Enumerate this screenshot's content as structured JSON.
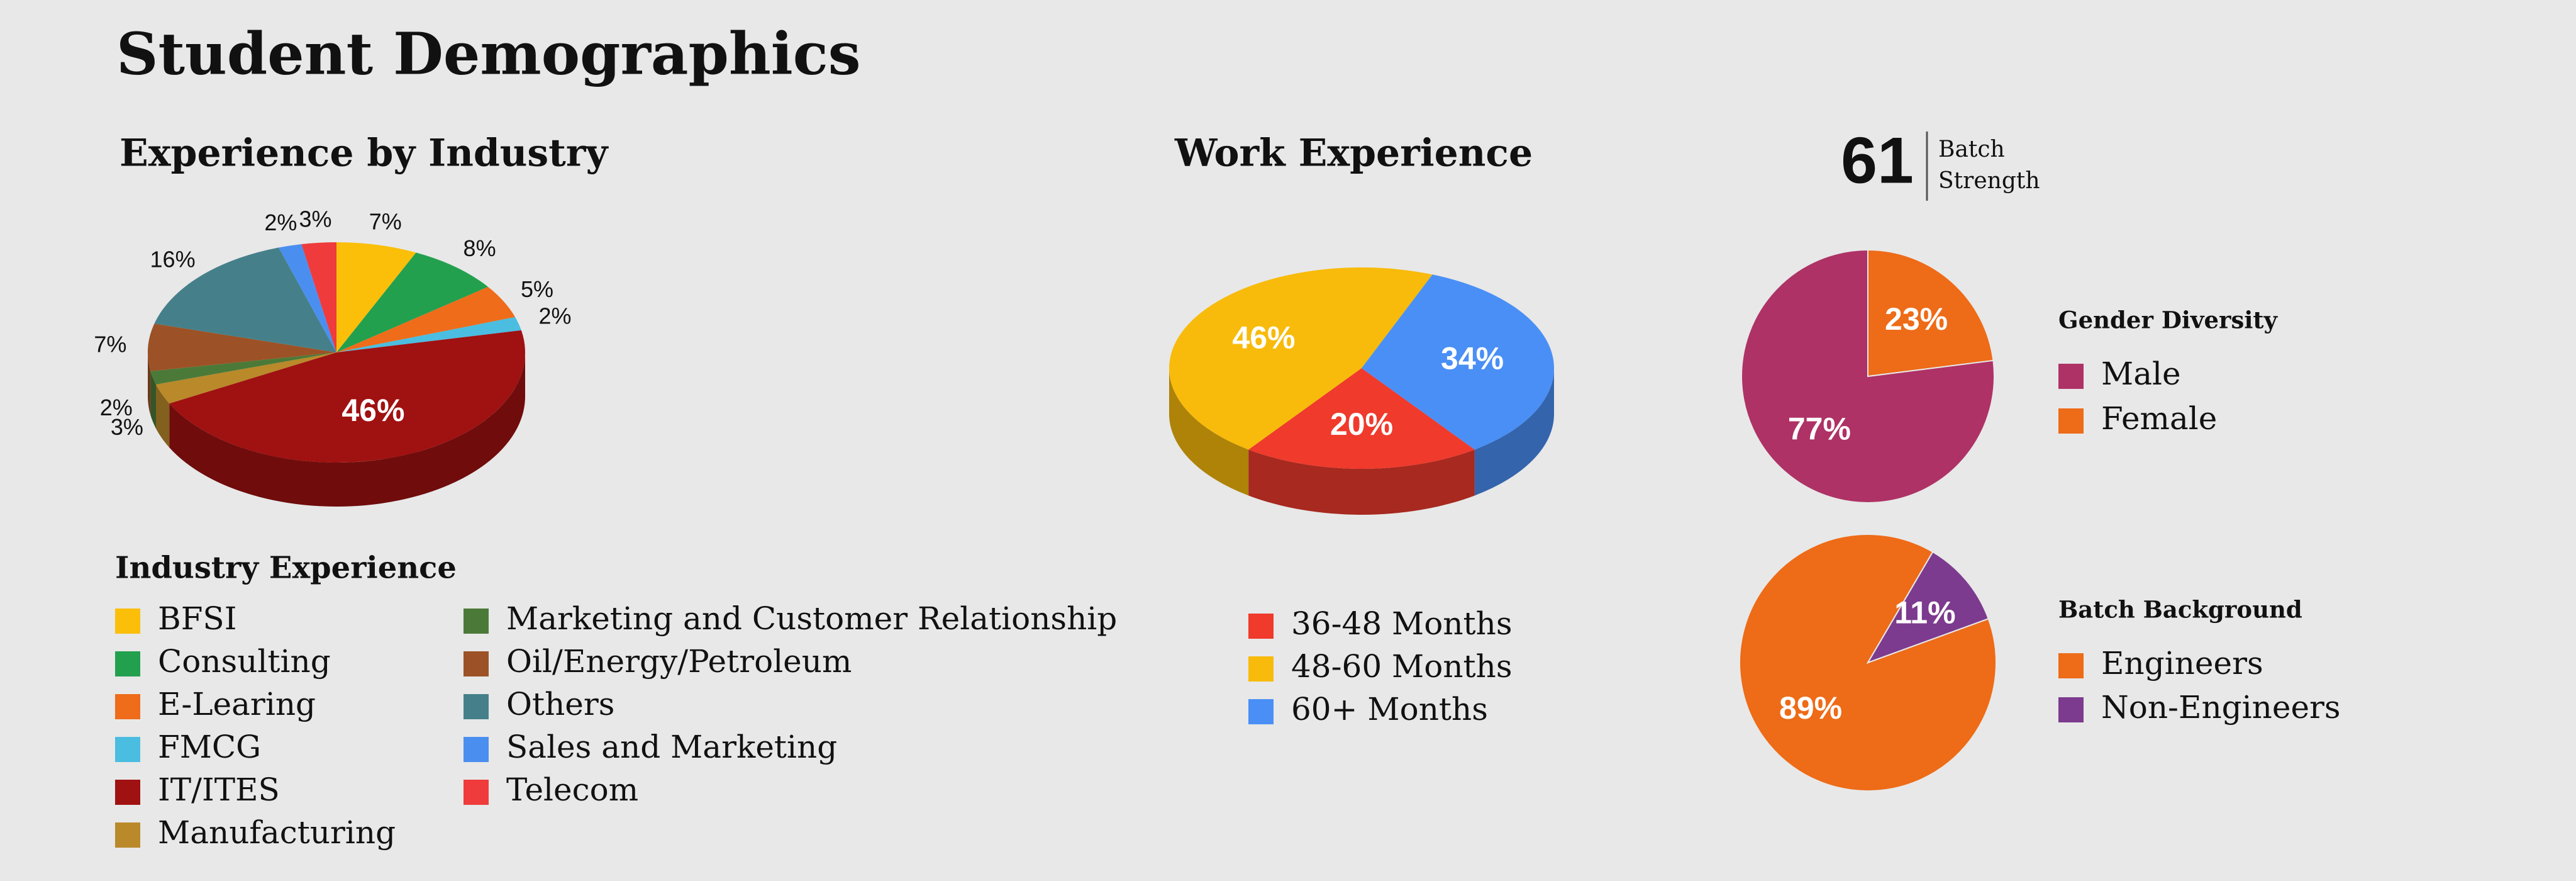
{
  "title": "Student Demographics",
  "batch": {
    "value": 61,
    "label_lines": [
      "Batch",
      "Strength"
    ]
  },
  "chart_data": [
    {
      "type": "pie",
      "title": "Experience by Industry",
      "legend_title": "Industry Experience",
      "3d": true,
      "categories": [
        "BFSI",
        "Consulting",
        "E-Learing",
        "FMCG",
        "IT/ITES",
        "Manufacturing",
        "Marketing and Customer Relationship",
        "Oil/Energy/Petroleum",
        "Others",
        "Sales and Marketing",
        "Telecom"
      ],
      "values": [
        7,
        8,
        5,
        2,
        46,
        3,
        2,
        7,
        16,
        2,
        3
      ],
      "value_labels": [
        "7%",
        "8%",
        "5%",
        "2%",
        "46%",
        "3%",
        "2%",
        "7%",
        "16%",
        "2%",
        "3%"
      ],
      "colors": [
        "#fbbf0a",
        "#22a04e",
        "#ef6c1a",
        "#4bbde0",
        "#a01111",
        "#b9892a",
        "#4b7a38",
        "#9c5226",
        "#45808a",
        "#4a8ff0",
        "#ef3b3b"
      ]
    },
    {
      "type": "pie",
      "title": "Work Experience",
      "3d": true,
      "categories": [
        "36-48 Months",
        "48-60 Months",
        "60+ Months"
      ],
      "values": [
        20,
        46,
        34
      ],
      "value_labels": [
        "20%",
        "46%",
        "34%"
      ],
      "colors": [
        "#ef3a2c",
        "#f8bb0b",
        "#4a8ff5"
      ]
    },
    {
      "type": "pie",
      "title": "Gender Diversity",
      "categories": [
        "Male",
        "Female"
      ],
      "values": [
        77,
        23
      ],
      "value_labels": [
        "77%",
        "23%"
      ],
      "colors": [
        "#ae3266",
        "#ee6b18"
      ]
    },
    {
      "type": "pie",
      "title": "Batch Background",
      "categories": [
        "Engineers",
        "Non-Engineers"
      ],
      "values": [
        89,
        11
      ],
      "value_labels": [
        "89%",
        "11%"
      ],
      "colors": [
        "#ee6b17",
        "#7c3b8e"
      ]
    }
  ]
}
